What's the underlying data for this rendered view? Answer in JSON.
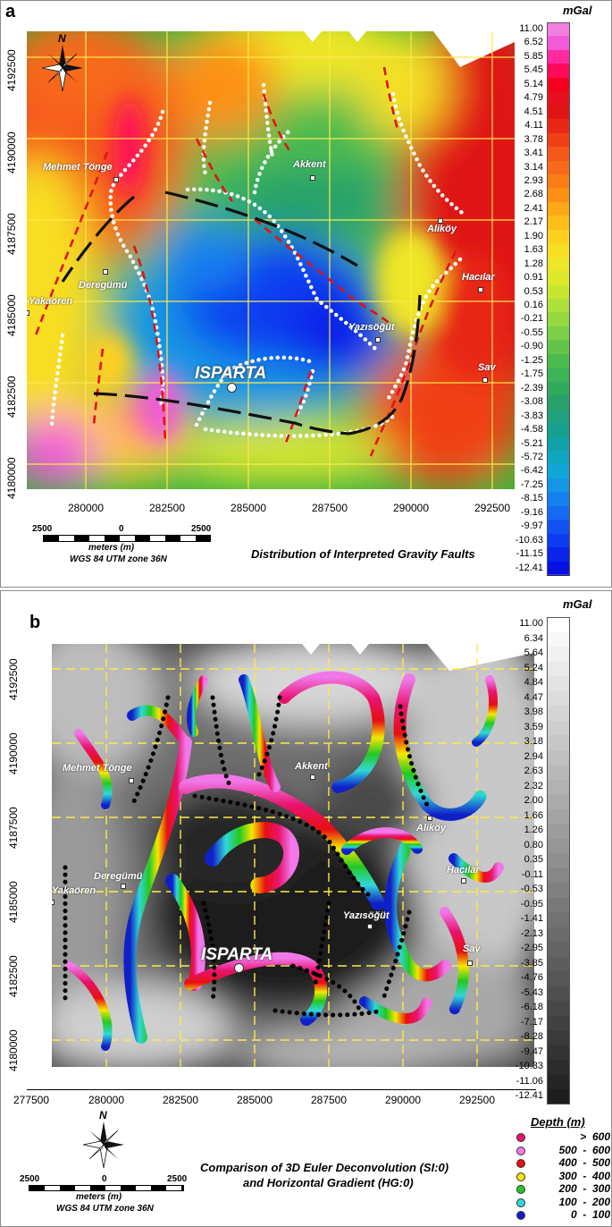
{
  "panel_a": {
    "label": "a",
    "title": "Distribution of Interpreted Gravity Faults",
    "unit": "mGal",
    "north": "N",
    "y_ticks": [
      "4192500",
      "4190000",
      "4187500",
      "4185000",
      "4182500",
      "4180000"
    ],
    "x_ticks": [
      "280000",
      "282500",
      "285000",
      "287500",
      "290000",
      "292500"
    ],
    "scale_labels": [
      "2500",
      "0",
      "2500"
    ],
    "scale_unit": "meters (m)",
    "projection": "WGS 84 UTM zone 36N",
    "towns": [
      "Mehmet Tönge",
      "Akkent",
      "Aliköy",
      "Deregümü",
      "Yakaören",
      "Hacılar",
      "Yazısöğüt",
      "Sav"
    ],
    "city": "ISPARTA",
    "legend_values": [
      "11.00",
      "6.52",
      "5.85",
      "5.45",
      "5.14",
      "4.79",
      "4.51",
      "4.11",
      "3.78",
      "3.41",
      "3.14",
      "2.93",
      "2.68",
      "2.41",
      "2.17",
      "1.90",
      "1.63",
      "1.28",
      "0.91",
      "0.53",
      "0.16",
      "-0.21",
      "-0.55",
      "-0.90",
      "-1.25",
      "-1.75",
      "-2.39",
      "-3.08",
      "-3.83",
      "-4.58",
      "-5.21",
      "-5.72",
      "-6.42",
      "-7.25",
      "-8.15",
      "-9.16",
      "-9.97",
      "-10.63",
      "-11.15",
      "-12.41"
    ],
    "legend_colors": [
      "#f27fe0",
      "#f25ad8",
      "#ff2aa0",
      "#ff0a5a",
      "#f5001e",
      "#e8101e",
      "#e01414",
      "#e82814",
      "#f04016",
      "#f5581a",
      "#f86a1a",
      "#fa7c16",
      "#fc9014",
      "#fda816",
      "#fdbe1a",
      "#fed020",
      "#f8de22",
      "#eee628",
      "#dde82a",
      "#c6e630",
      "#aee03a",
      "#95d840",
      "#7ccf46",
      "#62c54a",
      "#4cbb4e",
      "#3cb354",
      "#30aa5c",
      "#28a26a",
      "#1fa07e",
      "#17a090",
      "#10a2a8",
      "#10a6c0",
      "#12a6d6",
      "#1496e4",
      "#1680ee",
      "#156af2",
      "#1252f2",
      "#0e3cf0",
      "#0a24ea",
      "#0810e4"
    ]
  },
  "panel_b": {
    "label": "b",
    "title_line1": "Comparison of 3D Euler Deconvolution (SI:0)",
    "title_line2": "and Horizontal Gradient (HG:0)",
    "unit": "mGal",
    "north": "N",
    "y_ticks": [
      "4192500",
      "4190000",
      "4187500",
      "4185000",
      "4182500",
      "4180000"
    ],
    "x_ticks": [
      "277500",
      "280000",
      "282500",
      "285000",
      "287500",
      "290000",
      "292500"
    ],
    "scale_labels": [
      "2500",
      "0",
      "2500"
    ],
    "scale_unit": "meters (m)",
    "projection": "WGS 84 UTM zone 36N",
    "towns": [
      "Mehmet Tönge",
      "Akkent",
      "Aliköy",
      "Deregümü",
      "Yakaören",
      "Hacılar",
      "Yazısöğüt",
      "Sav"
    ],
    "city": "ISPARTA",
    "legend_values": [
      "11.00",
      "6.34",
      "5.64",
      "5.24",
      "4.84",
      "4.47",
      "3.98",
      "3.59",
      "3.18",
      "2.94",
      "2.63",
      "2.32",
      "2.00",
      "1.66",
      "1.26",
      "0.80",
      "0.35",
      "-0.11",
      "-0.53",
      "-0.95",
      "-1.41",
      "-2.13",
      "-2.95",
      "-3.85",
      "-4.76",
      "-5.43",
      "-6.18",
      "-7.17",
      "-8.28",
      "-9.47",
      "-10.33",
      "-11.06",
      "-12.41"
    ],
    "depth_legend": {
      "title": "Depth (m)",
      "items": [
        {
          "label": ">  600",
          "color": "#e8126e"
        },
        {
          "label": "500  -  600",
          "color": "#f078e8"
        },
        {
          "label": "400  -  500",
          "color": "#e81010"
        },
        {
          "label": "300  -  400",
          "color": "#f4e800"
        },
        {
          "label": "200  -  300",
          "color": "#22c822"
        },
        {
          "label": "100  -  200",
          "color": "#30d8d8"
        },
        {
          "label": "0  -  100",
          "color": "#1020c8"
        }
      ]
    }
  }
}
